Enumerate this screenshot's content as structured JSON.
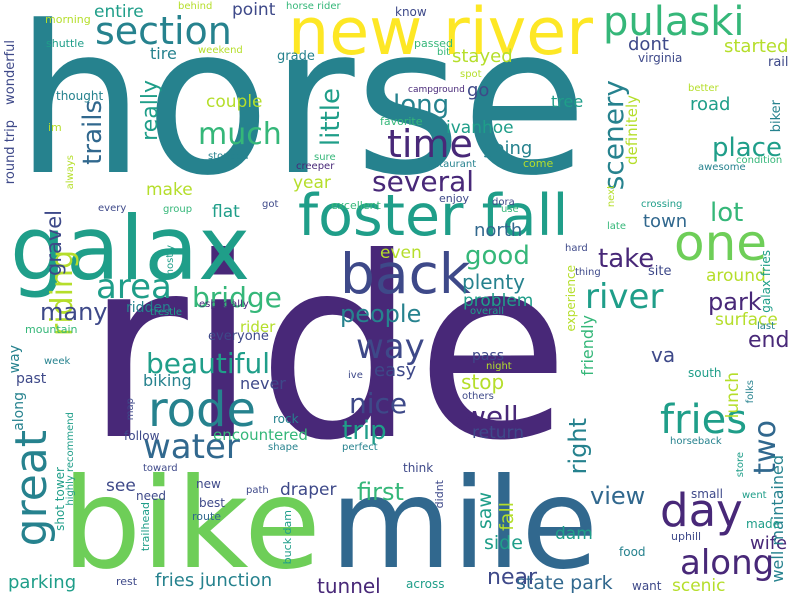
{
  "palette": {
    "background": "#ffffff",
    "deep_purple": "#482878",
    "indigo": "#3e4989",
    "blue": "#31688e",
    "teal": "#26828e",
    "green_teal": "#1f9e89",
    "green": "#35b779",
    "lime": "#6ece58",
    "yellow_green": "#b5de2b",
    "yellow": "#fde725"
  },
  "words": [
    {
      "text": "horse"
    },
    {
      "text": "ride"
    },
    {
      "text": "bike"
    },
    {
      "text": "mile"
    },
    {
      "text": "galax"
    },
    {
      "text": "new river"
    },
    {
      "text": "foster fall"
    },
    {
      "text": "back"
    },
    {
      "text": "one"
    },
    {
      "text": "pulaski"
    },
    {
      "text": "section"
    },
    {
      "text": "time"
    },
    {
      "text": "rode"
    },
    {
      "text": "day"
    },
    {
      "text": "along"
    },
    {
      "text": "great"
    },
    {
      "text": "fries"
    },
    {
      "text": "river"
    },
    {
      "text": "water"
    },
    {
      "text": "way"
    },
    {
      "text": "much"
    },
    {
      "text": "lot"
    },
    {
      "text": "place"
    },
    {
      "text": "scenery"
    },
    {
      "text": "trails"
    },
    {
      "text": "riding"
    },
    {
      "text": "area"
    },
    {
      "text": "bridge"
    },
    {
      "text": "several"
    },
    {
      "text": "long"
    },
    {
      "text": "little"
    },
    {
      "text": "beautiful"
    },
    {
      "text": "nice"
    },
    {
      "text": "trip"
    },
    {
      "text": "well"
    },
    {
      "text": "good"
    },
    {
      "text": "take"
    },
    {
      "text": "people"
    },
    {
      "text": "park"
    },
    {
      "text": "two"
    },
    {
      "text": "right"
    },
    {
      "text": "view"
    },
    {
      "text": "first"
    },
    {
      "text": "tunnel"
    },
    {
      "text": "near"
    },
    {
      "text": "state park"
    },
    {
      "text": "many"
    },
    {
      "text": "really"
    },
    {
      "text": "gravel"
    },
    {
      "text": "end"
    },
    {
      "text": "go"
    },
    {
      "text": "going"
    },
    {
      "text": "plenty"
    },
    {
      "text": "north"
    },
    {
      "text": "road"
    },
    {
      "text": "couple"
    },
    {
      "text": "make"
    },
    {
      "text": "year"
    },
    {
      "text": "flat"
    },
    {
      "text": "town"
    },
    {
      "text": "started"
    },
    {
      "text": "dont"
    },
    {
      "text": "stayed"
    },
    {
      "text": "entire"
    },
    {
      "text": "point"
    },
    {
      "text": "ivanhoe"
    },
    {
      "text": "va"
    },
    {
      "text": "stop"
    },
    {
      "text": "easy"
    },
    {
      "text": "lunch"
    },
    {
      "text": "surface"
    },
    {
      "text": "around"
    },
    {
      "text": "problem"
    },
    {
      "text": "return"
    },
    {
      "text": "saw"
    },
    {
      "text": "fall"
    },
    {
      "text": "side"
    },
    {
      "text": "dam"
    },
    {
      "text": "wife"
    },
    {
      "text": "scenic"
    },
    {
      "text": "fries junction"
    },
    {
      "text": "parking"
    },
    {
      "text": "draper"
    },
    {
      "text": "encountered"
    },
    {
      "text": "biking"
    },
    {
      "text": "never"
    },
    {
      "text": "see"
    },
    {
      "text": "even"
    },
    {
      "text": "tree"
    },
    {
      "text": "grade"
    },
    {
      "text": "tire"
    },
    {
      "text": "know"
    },
    {
      "text": "virginia"
    },
    {
      "text": "rail"
    },
    {
      "text": "biker"
    },
    {
      "text": "well maintained"
    },
    {
      "text": "friendly"
    },
    {
      "text": "experience"
    },
    {
      "text": "definitely"
    },
    {
      "text": "rider"
    },
    {
      "text": "ridden"
    },
    {
      "text": "way"
    },
    {
      "text": "past"
    },
    {
      "text": "along"
    },
    {
      "text": "round trip"
    },
    {
      "text": "wonderful"
    },
    {
      "text": "morning"
    },
    {
      "text": "shuttle"
    },
    {
      "text": "behind"
    },
    {
      "text": "horse rider"
    },
    {
      "text": "weekend"
    },
    {
      "text": "passed"
    },
    {
      "text": "bit"
    },
    {
      "text": "spot"
    },
    {
      "text": "campground"
    },
    {
      "text": "better"
    },
    {
      "text": "favorite"
    },
    {
      "text": "thought"
    },
    {
      "text": "im"
    },
    {
      "text": "stopped"
    },
    {
      "text": "sure"
    },
    {
      "text": "creeper"
    },
    {
      "text": "restaurant"
    },
    {
      "text": "come"
    },
    {
      "text": "always"
    },
    {
      "text": "every"
    },
    {
      "text": "group"
    },
    {
      "text": "got"
    },
    {
      "text": "excellent"
    },
    {
      "text": "enjoy"
    },
    {
      "text": "use"
    },
    {
      "text": "next"
    },
    {
      "text": "crossing"
    },
    {
      "text": "condition"
    },
    {
      "text": "awesome"
    },
    {
      "text": "late"
    },
    {
      "text": "mostly"
    },
    {
      "text": "dora"
    },
    {
      "text": "hard"
    },
    {
      "text": "thing"
    },
    {
      "text": "site"
    },
    {
      "text": "galax fries"
    },
    {
      "text": "mountain"
    },
    {
      "text": "trestle"
    },
    {
      "text": "especially"
    },
    {
      "text": "overall"
    },
    {
      "text": "last"
    },
    {
      "text": "everyone"
    },
    {
      "text": "pass"
    },
    {
      "text": "night"
    },
    {
      "text": "south"
    },
    {
      "text": "week"
    },
    {
      "text": "ive"
    },
    {
      "text": "others"
    },
    {
      "text": "map"
    },
    {
      "text": "highly recommend"
    },
    {
      "text": "follow"
    },
    {
      "text": "rock"
    },
    {
      "text": "shape"
    },
    {
      "text": "perfect"
    },
    {
      "text": "think"
    },
    {
      "text": "folks"
    },
    {
      "text": "horseback"
    },
    {
      "text": "store"
    },
    {
      "text": "went"
    },
    {
      "text": "toward"
    },
    {
      "text": "need"
    },
    {
      "text": "shot tower"
    },
    {
      "text": "trailhead"
    },
    {
      "text": "best"
    },
    {
      "text": "route"
    },
    {
      "text": "new"
    },
    {
      "text": "path"
    },
    {
      "text": "buck dam"
    },
    {
      "text": "didnt"
    },
    {
      "text": "small"
    },
    {
      "text": "made"
    },
    {
      "text": "uphill"
    },
    {
      "text": "food"
    },
    {
      "text": "want"
    },
    {
      "text": "across"
    },
    {
      "text": "rest"
    }
  ]
}
